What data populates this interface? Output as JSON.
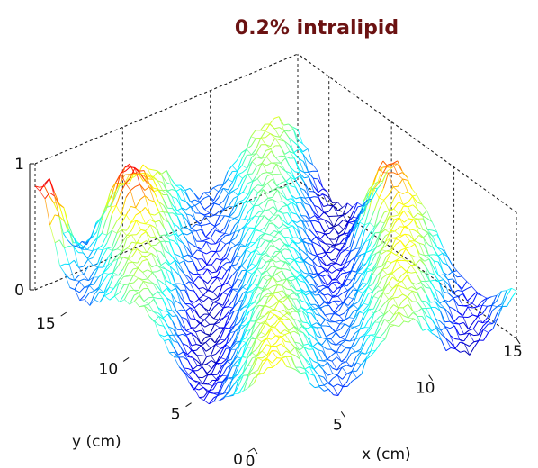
{
  "chart_data": {
    "type": "surface",
    "title": "0.2% intralipid",
    "xlabel": "x (cm)",
    "ylabel": "y (cm)",
    "zlabel": "",
    "xlim": [
      0,
      15
    ],
    "ylim": [
      0,
      17.5
    ],
    "zlim": [
      0,
      1
    ],
    "x_ticks": [
      0,
      5,
      10,
      15
    ],
    "y_ticks": [
      0,
      5,
      10,
      15
    ],
    "z_ticks": [
      0,
      1
    ],
    "z_tick_labels": [
      "0",
      "1"
    ],
    "grid": true,
    "colormap": "jet",
    "surface_note": "Normalized intensity surface with sinusoidal ridges and valleys",
    "peaks": [
      {
        "x": 0.5,
        "y": 17.0,
        "z": 1.0
      },
      {
        "x": 14.0,
        "y": 9.5,
        "z": 0.75
      },
      {
        "x": 4.0,
        "y": 16.0,
        "z": 0.75
      }
    ]
  }
}
